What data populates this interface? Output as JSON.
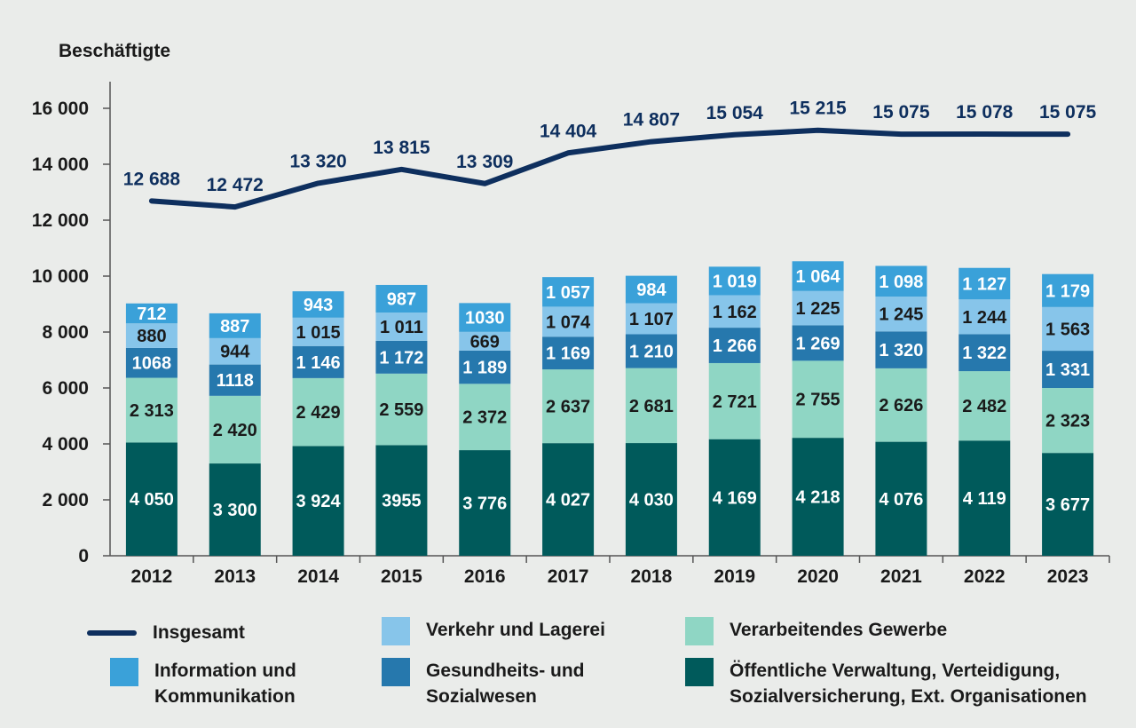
{
  "chart_data": {
    "type": "bar",
    "stacked": true,
    "ylabel": "Beschäftigte",
    "ylim": [
      0,
      16000
    ],
    "yticks": [
      0,
      2000,
      4000,
      6000,
      8000,
      10000,
      12000,
      14000,
      16000
    ],
    "ytick_labels": [
      "0",
      "2 000",
      "4 000",
      "6 000",
      "8 000",
      "10 000",
      "12 000",
      "14 000",
      "16 000"
    ],
    "categories": [
      "2012",
      "2013",
      "2014",
      "2015",
      "2016",
      "2017",
      "2018",
      "2019",
      "2020",
      "2021",
      "2022",
      "2023"
    ],
    "grid": false,
    "legend_position": "bottom",
    "series": [
      {
        "name": "Öffentliche Verwaltung, Verteidigung, Sozialversicherung, Ext. Organisationen",
        "color": "#005a5b",
        "values": [
          4050,
          3300,
          3924,
          3955,
          3776,
          4027,
          4030,
          4169,
          4218,
          4076,
          4119,
          3677
        ],
        "labels": [
          "4 050",
          "3 300",
          "3 924",
          "3955",
          "3 776",
          "4 027",
          "4 030",
          "4 169",
          "4 218",
          "4 076",
          "4 119",
          "3 677"
        ],
        "label_color": "#ffffff"
      },
      {
        "name": "Verarbeitendes Gewerbe",
        "color": "#8fd6c4",
        "values": [
          2313,
          2420,
          2429,
          2559,
          2372,
          2637,
          2681,
          2721,
          2755,
          2626,
          2482,
          2323
        ],
        "labels": [
          "2 313",
          "2 420",
          "2 429",
          "2 559",
          "2 372",
          "2 637",
          "2 681",
          "2 721",
          "2 755",
          "2 626",
          "2 482",
          "2 323"
        ],
        "label_color": "#1a1a1a"
      },
      {
        "name": "Gesundheits- und Sozialwesen",
        "color": "#2678ad",
        "values": [
          1068,
          1118,
          1146,
          1172,
          1189,
          1169,
          1210,
          1266,
          1269,
          1320,
          1322,
          1331
        ],
        "labels": [
          "1068",
          "1118",
          "1 146",
          "1 172",
          "1 189",
          "1 169",
          "1 210",
          "1 266",
          "1 269",
          "1 320",
          "1 322",
          "1 331"
        ],
        "label_color": "#ffffff"
      },
      {
        "name": "Verkehr und Lagerei",
        "color": "#87c5ea",
        "values": [
          880,
          944,
          1015,
          1011,
          669,
          1074,
          1107,
          1162,
          1225,
          1245,
          1244,
          1563
        ],
        "labels": [
          "880",
          "944",
          "1 015",
          "1 011",
          "669",
          "1 074",
          "1 107",
          "1 162",
          "1 225",
          "1 245",
          "1 244",
          "1 563"
        ],
        "label_color": "#1a1a1a"
      },
      {
        "name": "Information und Kommunikation",
        "color": "#3aa1d9",
        "values": [
          712,
          887,
          943,
          987,
          1030,
          1057,
          984,
          1019,
          1064,
          1098,
          1127,
          1179
        ],
        "labels": [
          "712",
          "887",
          "943",
          "987",
          "1030",
          "1 057",
          "984",
          "1 019",
          "1 064",
          "1 098",
          "1 127",
          "1 179"
        ],
        "label_color": "#ffffff"
      }
    ],
    "line": {
      "name": "Insgesamt",
      "color": "#0e2f5e",
      "values": [
        12688,
        12472,
        13320,
        13815,
        13309,
        14404,
        14807,
        15054,
        15215,
        15075,
        15078,
        15075
      ],
      "labels": [
        "12 688",
        "12 472",
        "13 320",
        "13 815",
        "13 309",
        "14 404",
        "14 807",
        "15 054",
        "15 215",
        "15 075",
        "15 078",
        "15 075"
      ]
    }
  },
  "legend": {
    "insgesamt": "Insgesamt",
    "verkehr": "Verkehr und Lagerei",
    "verarbeitend": "Verarbeitendes Gewerbe",
    "information": "Information und\nKommunikation",
    "gesundheit": "Gesundheits- und\nSozialwesen",
    "oeffentlich": "Öffentliche Verwaltung, Verteidigung,\nSozialversicherung, Ext. Organisationen"
  }
}
